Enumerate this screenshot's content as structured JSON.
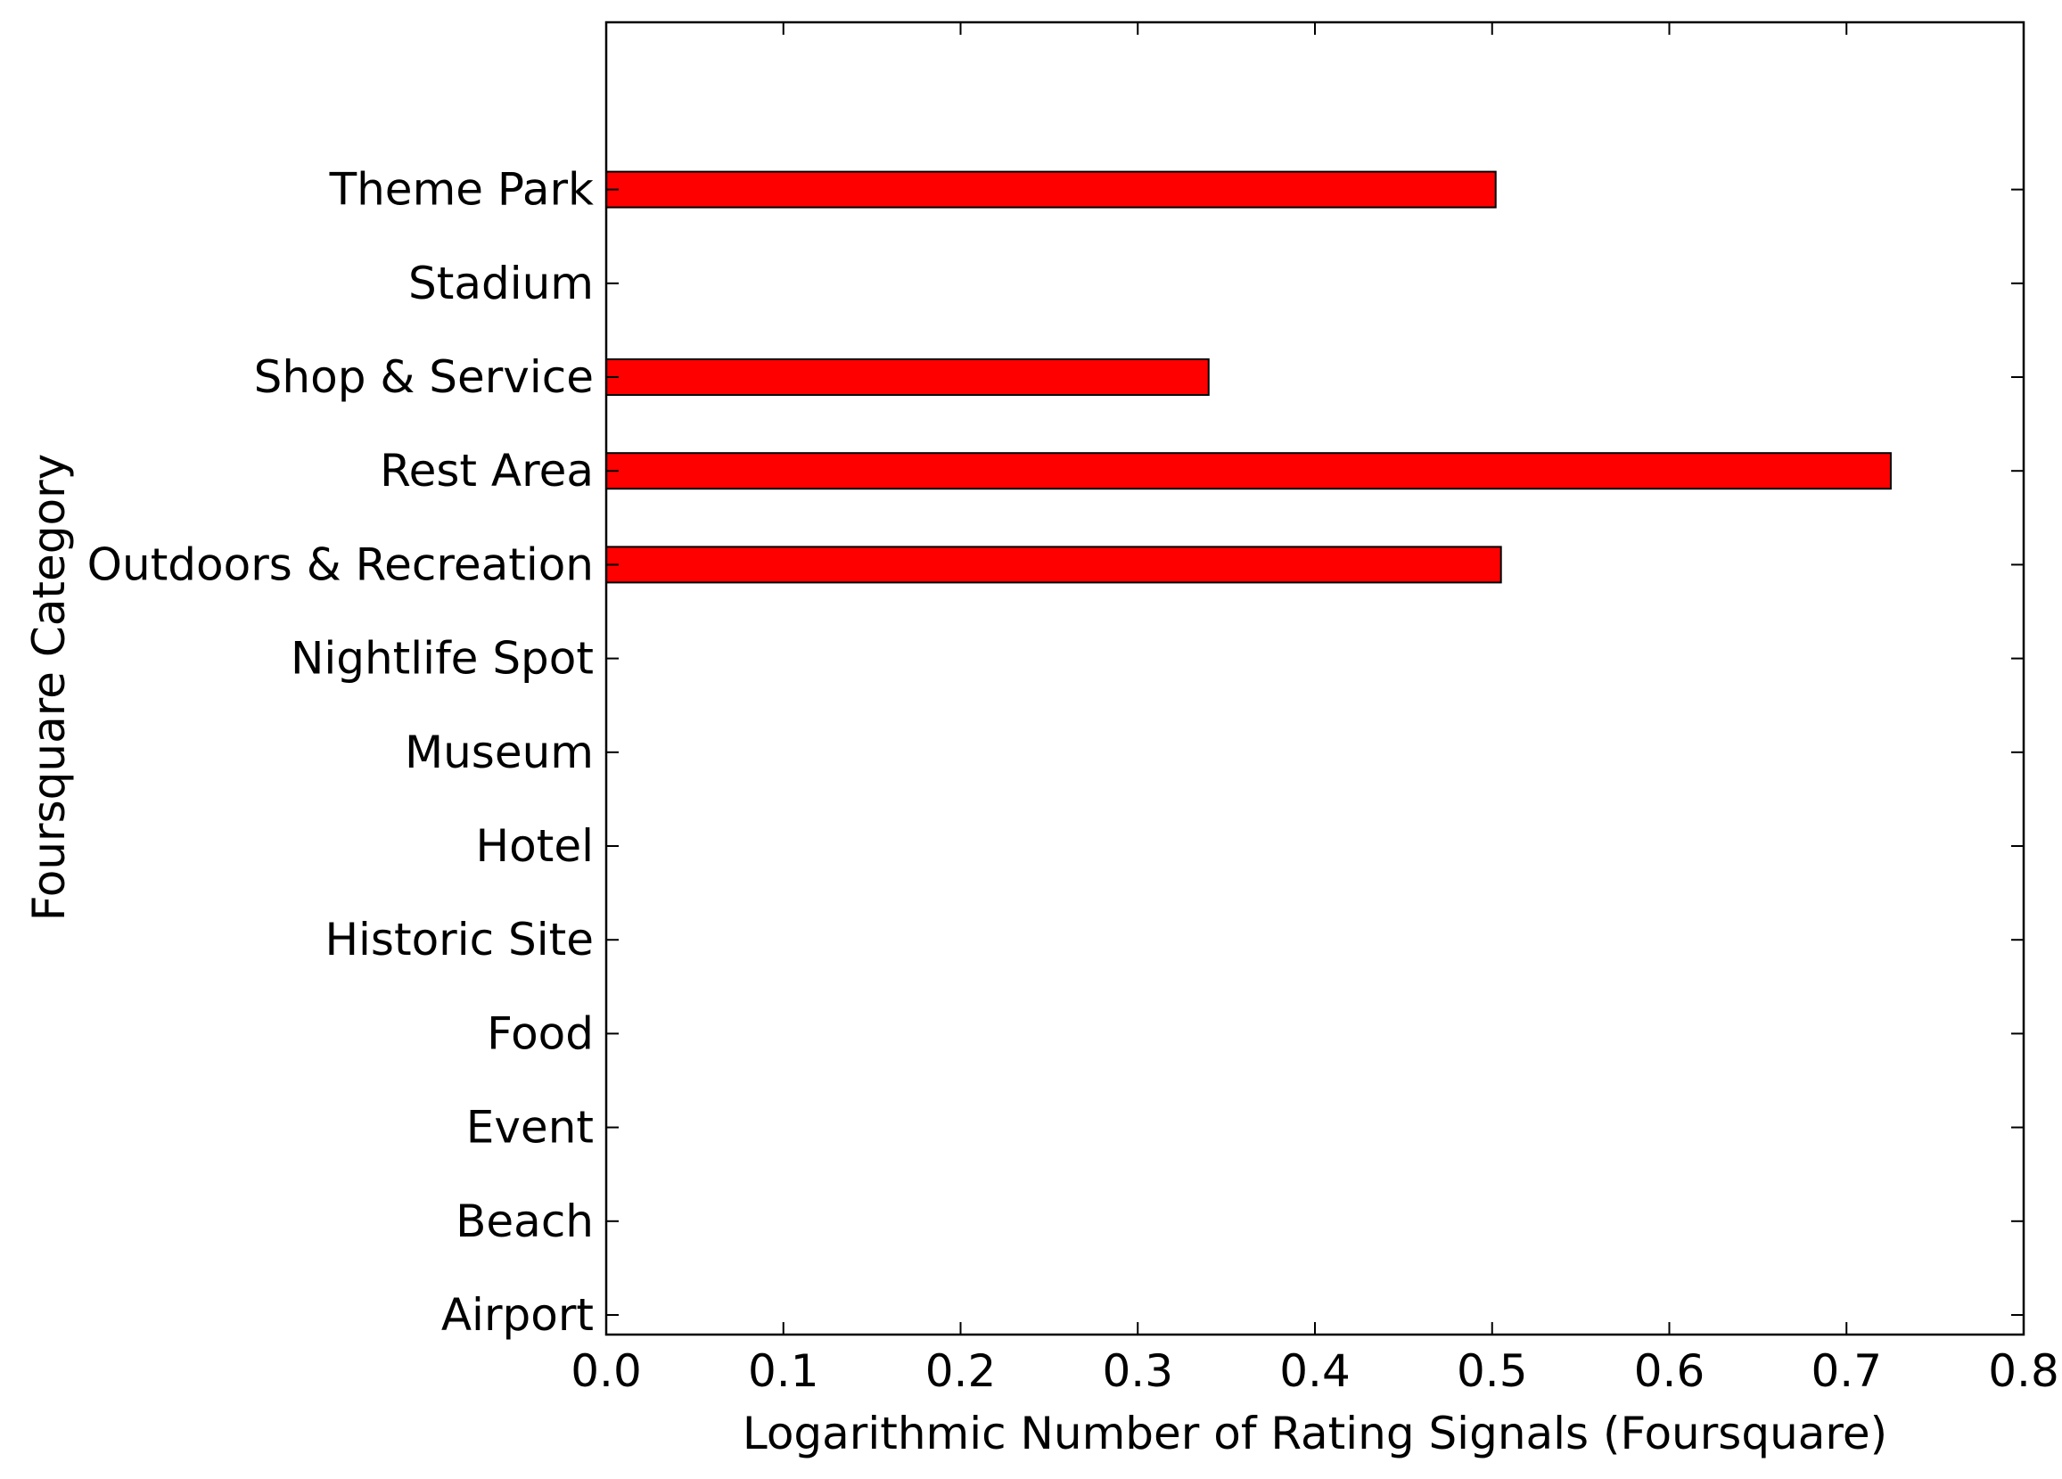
{
  "chart_data": {
    "type": "bar",
    "orientation": "horizontal",
    "categories": [
      "Airport",
      "Beach",
      "Event",
      "Food",
      "Historic Site",
      "Hotel",
      "Museum",
      "Nightlife Spot",
      "Outdoors & Recreation",
      "Rest Area",
      "Shop & Service",
      "Stadium",
      "Theme Park"
    ],
    "values": [
      0,
      0,
      0,
      0,
      0,
      0,
      0,
      0,
      0.505,
      0.725,
      0.34,
      0,
      0.502
    ],
    "xlabel": "Logarithmic Number of Rating Signals (Foursquare)",
    "ylabel": "Foursquare Category",
    "xlim": [
      0.0,
      0.8
    ],
    "xticks": [
      "0.0",
      "0.1",
      "0.2",
      "0.3",
      "0.4",
      "0.5",
      "0.6",
      "0.7",
      "0.8"
    ],
    "grid": false,
    "bar_color": "#ff0000",
    "edge_color": "#000000"
  }
}
